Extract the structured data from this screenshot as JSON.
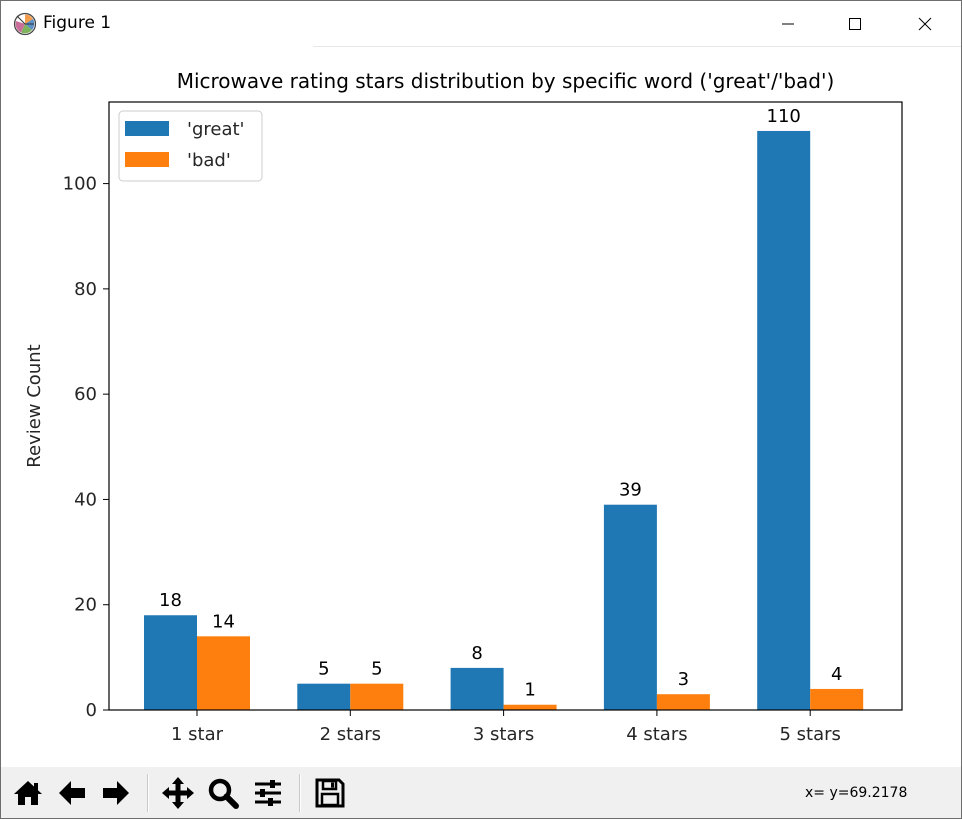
{
  "window": {
    "title": "Figure 1"
  },
  "toolbar": {
    "coords": "x= y=69.2178",
    "buttons": [
      {
        "icon": "home-icon"
      },
      {
        "icon": "back-arrow-icon"
      },
      {
        "icon": "forward-arrow-icon"
      },
      {
        "icon": "pan-icon"
      },
      {
        "icon": "zoom-icon"
      },
      {
        "icon": "configure-subplots-icon"
      },
      {
        "icon": "save-icon"
      }
    ]
  },
  "colors": {
    "great": "#1f77b4",
    "bad": "#ff7f0e"
  },
  "chart_data": {
    "type": "bar",
    "title": "Microwave rating stars distribution by specific word ('great'/'bad')",
    "xlabel": "",
    "ylabel": "Review Count",
    "categories": [
      "1 star",
      "2 stars",
      "3 stars",
      "4 stars",
      "5 stars"
    ],
    "series": [
      {
        "name": "'great'",
        "values": [
          18,
          5,
          8,
          39,
          110
        ]
      },
      {
        "name": "'bad'",
        "values": [
          14,
          5,
          1,
          3,
          4
        ]
      }
    ],
    "ylim": [
      0,
      115.5
    ],
    "yticks": [
      0,
      20,
      40,
      60,
      80,
      100
    ],
    "legend": "top-left",
    "grid": false,
    "data_labels": true
  }
}
